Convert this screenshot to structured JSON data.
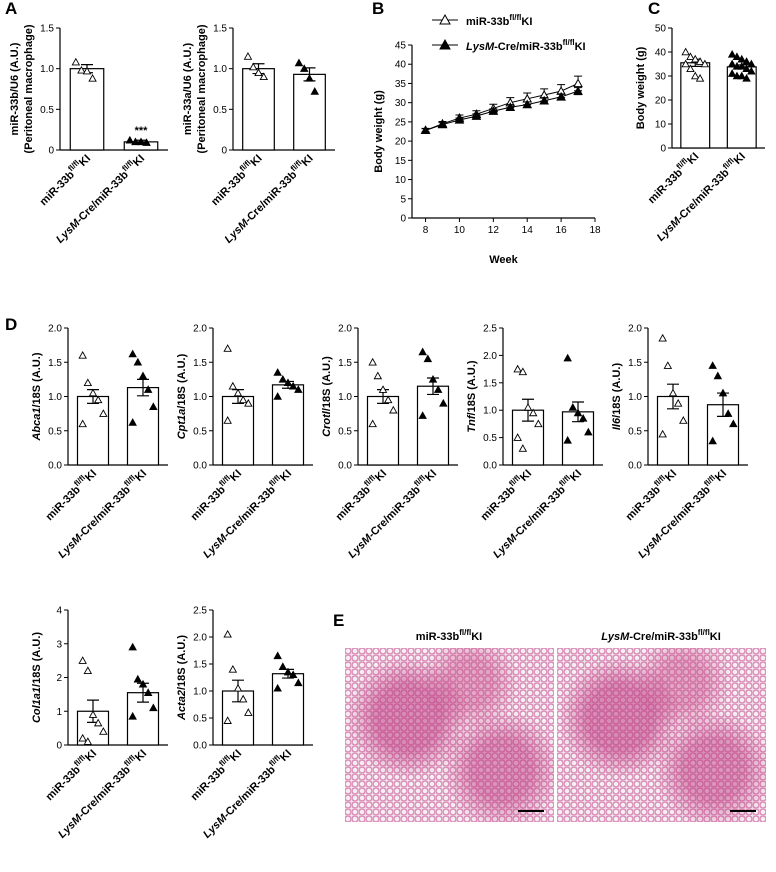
{
  "chart_data": [
    {
      "type": "bar",
      "panel_label": "A",
      "ylabel": [
        [
          "miR-33b/U6 (A.U.)"
        ],
        [
          "(Peritoneal macrophage)"
        ]
      ],
      "categories": [
        [
          "miR-33b",
          "fl/fl",
          "KI"
        ],
        [
          "LysM",
          "-Cre/miR-33b",
          "fl/fl",
          "KI"
        ]
      ],
      "values": [
        1.0,
        0.1
      ],
      "errors": [
        0.05,
        0.02
      ],
      "points": [
        [
          1.08,
          0.98,
          0.97,
          0.88
        ],
        [
          0.12,
          0.1,
          0.1,
          0.09
        ]
      ],
      "markers": [
        "open",
        "filled"
      ],
      "annotation": "***",
      "ylim": [
        0,
        1.5
      ],
      "yticks": [
        0,
        0.5,
        {
          "value": 1,
          "label": "1.0"
        },
        1.5
      ]
    },
    {
      "type": "bar",
      "ylabel": [
        [
          "miR-33a/U6 (A.U.)"
        ],
        [
          "(Peritoneal macrophage)"
        ]
      ],
      "categories": [
        [
          "miR-33b",
          "fl/fl",
          "KI"
        ],
        [
          "LysM",
          "-Cre/miR-33b",
          "fl/fl",
          "KI"
        ]
      ],
      "values": [
        1.0,
        0.93
      ],
      "errors": [
        0.06,
        0.08
      ],
      "points": [
        [
          1.15,
          1.02,
          0.95,
          0.9
        ],
        [
          1.07,
          1.0,
          0.88,
          0.72
        ]
      ],
      "markers": [
        "open",
        "filled"
      ],
      "ylim": [
        0,
        1.5
      ],
      "yticks": [
        0,
        0.5,
        {
          "value": 1,
          "label": "1.0"
        },
        1.5
      ]
    },
    {
      "type": "line",
      "panel_label": "B",
      "ylabel": [
        [
          "Body weight (g)"
        ]
      ],
      "xlabel": "Week",
      "x": [
        8,
        9,
        10,
        11,
        12,
        13,
        14,
        15,
        16,
        17
      ],
      "series": [
        {
          "name": [
            "miR-33b",
            "fl/fl",
            "KI"
          ],
          "marker": "open",
          "color": "#000000",
          "values": [
            22.8,
            24.5,
            26,
            27,
            28.5,
            30,
            31,
            32,
            33,
            35
          ],
          "errors": [
            0.5,
            0.6,
            0.8,
            0.9,
            1.1,
            1.3,
            1.5,
            1.6,
            1.7,
            1.9
          ]
        },
        {
          "name": [
            "LysM",
            "-Cre/miR-33b",
            "fl/fl",
            "KI"
          ],
          "marker": "filled",
          "color": "#000000",
          "values": [
            22.8,
            24.3,
            25.5,
            26.5,
            27.8,
            28.8,
            29.5,
            30.5,
            31.5,
            33
          ],
          "errors": [
            0.4,
            0.5,
            0.5,
            0.6,
            0.6,
            0.7,
            0.7,
            0.8,
            0.8,
            0.9
          ]
        }
      ],
      "xlim": [
        7.2,
        18
      ],
      "xticks": [
        8,
        10,
        12,
        14,
        16,
        18
      ],
      "ylim": [
        0,
        45
      ],
      "yticks": [
        0,
        5,
        10,
        15,
        20,
        25,
        30,
        35,
        40,
        45
      ]
    },
    {
      "type": "bar",
      "panel_label": "C",
      "ylabel": [
        [
          "Body weight (g)"
        ]
      ],
      "categories": [
        [
          "miR-33b",
          "fl/fl",
          "KI"
        ],
        [
          "LysM",
          "-Cre/miR-33b",
          "fl/fl",
          "KI"
        ]
      ],
      "values": [
        35.5,
        33.8
      ],
      "errors": [
        1.5,
        0.8
      ],
      "points": [
        [
          40,
          38,
          37,
          36,
          35,
          35,
          33,
          30,
          29
        ],
        [
          39,
          38,
          37,
          36,
          35,
          35,
          34,
          34,
          33,
          32,
          31,
          30,
          30,
          29
        ]
      ],
      "markers": [
        "open",
        "filled"
      ],
      "ylim": [
        0,
        50
      ],
      "yticks": [
        0,
        10,
        20,
        30,
        40,
        50
      ]
    },
    {
      "type": "bar",
      "panel_label": "D",
      "ylabel": [
        [
          "Abca1",
          "/18S (A.U.)"
        ]
      ],
      "italic_first": true,
      "categories": [
        [
          "miR-33b",
          "fl/fl",
          "KI"
        ],
        [
          "LysM",
          "-Cre/miR-33b",
          "fl/fl",
          "KI"
        ]
      ],
      "values": [
        1.0,
        1.13
      ],
      "errors": [
        0.1,
        0.12
      ],
      "points": [
        [
          1.6,
          1.2,
          1.05,
          0.95,
          0.75,
          0.6
        ],
        [
          1.62,
          1.5,
          1.3,
          1.1,
          0.85,
          0.62
        ]
      ],
      "markers": [
        "open",
        "filled"
      ],
      "ylim": [
        0,
        2
      ],
      "yticks": [
        {
          "value": 0,
          "label": "0.0"
        },
        0.5,
        {
          "value": 1,
          "label": "1.0"
        },
        1.5,
        {
          "value": 2,
          "label": "2.0"
        }
      ]
    },
    {
      "type": "bar",
      "ylabel": [
        [
          "Cpt1a",
          "/18S (A.U.)"
        ]
      ],
      "italic_first": true,
      "categories": [
        [
          "miR-33b",
          "fl/fl",
          "KI"
        ],
        [
          "LysM",
          "-Cre/miR-33b",
          "fl/fl",
          "KI"
        ]
      ],
      "values": [
        1.0,
        1.17
      ],
      "errors": [
        0.1,
        0.05
      ],
      "points": [
        [
          1.7,
          1.15,
          1.05,
          0.95,
          0.9,
          0.65
        ],
        [
          1.35,
          1.25,
          1.2,
          1.15,
          1.1,
          1.0
        ]
      ],
      "markers": [
        "open",
        "filled"
      ],
      "ylim": [
        0,
        2
      ],
      "yticks": [
        {
          "value": 0,
          "label": "0.0"
        },
        0.5,
        {
          "value": 1,
          "label": "1.0"
        },
        1.5,
        {
          "value": 2,
          "label": "2.0"
        }
      ]
    },
    {
      "type": "bar",
      "ylabel": [
        [
          "Crotl",
          "/18S (A.U.)"
        ]
      ],
      "italic_first": true,
      "categories": [
        [
          "miR-33b",
          "fl/fl",
          "KI"
        ],
        [
          "LysM",
          "-Cre/miR-33b",
          "fl/fl",
          "KI"
        ]
      ],
      "values": [
        1.0,
        1.15
      ],
      "errors": [
        0.1,
        0.12
      ],
      "points": [
        [
          1.5,
          1.3,
          1.1,
          0.95,
          0.8,
          0.6
        ],
        [
          1.65,
          1.55,
          1.25,
          1.1,
          0.9,
          0.72
        ]
      ],
      "markers": [
        "open",
        "filled"
      ],
      "ylim": [
        0,
        2
      ],
      "yticks": [
        {
          "value": 0,
          "label": "0.0"
        },
        0.5,
        {
          "value": 1,
          "label": "1.0"
        },
        1.5,
        {
          "value": 2,
          "label": "2.0"
        }
      ]
    },
    {
      "type": "bar",
      "ylabel": [
        [
          "Tnf",
          "/18S (A.U.)"
        ]
      ],
      "italic_first": true,
      "categories": [
        [
          "miR-33b",
          "fl/fl",
          "KI"
        ],
        [
          "LysM",
          "-Cre/miR-33b",
          "fl/fl",
          "KI"
        ]
      ],
      "values": [
        1.0,
        0.97
      ],
      "errors": [
        0.2,
        0.18
      ],
      "points": [
        [
          1.75,
          1.7,
          1.05,
          0.95,
          0.75,
          0.5,
          0.3
        ],
        [
          1.95,
          1.05,
          0.95,
          0.85,
          0.6,
          0.45
        ]
      ],
      "markers": [
        "open",
        "filled"
      ],
      "ylim": [
        0,
        2.5
      ],
      "yticks": [
        {
          "value": 0,
          "label": "0.0"
        },
        0.5,
        {
          "value": 1,
          "label": "1.0"
        },
        1.5,
        {
          "value": 2,
          "label": "2.0"
        },
        2.5
      ]
    },
    {
      "type": "bar",
      "ylabel": [
        [
          "Il6",
          "/18S (A.U.)"
        ]
      ],
      "italic_first": true,
      "categories": [
        [
          "miR-33b",
          "fl/fl",
          "KI"
        ],
        [
          "LysM",
          "-Cre/miR-33b",
          "fl/fl",
          "KI"
        ]
      ],
      "values": [
        1.0,
        0.88
      ],
      "errors": [
        0.18,
        0.17
      ],
      "points": [
        [
          1.85,
          1.45,
          1.05,
          0.9,
          0.65,
          0.45
        ],
        [
          1.45,
          1.3,
          1.05,
          0.75,
          0.6,
          0.35
        ]
      ],
      "markers": [
        "open",
        "filled"
      ],
      "ylim": [
        0,
        2
      ],
      "yticks": [
        {
          "value": 0,
          "label": "0.0"
        },
        0.5,
        {
          "value": 1,
          "label": "1.0"
        },
        1.5,
        {
          "value": 2,
          "label": "2.0"
        }
      ]
    },
    {
      "type": "bar",
      "ylabel": [
        [
          "Col1a1",
          "/18S (A.U.)"
        ]
      ],
      "italic_first": true,
      "categories": [
        [
          "miR-33b",
          "fl/fl",
          "KI"
        ],
        [
          "LysM",
          "-Cre/miR-33b",
          "fl/fl",
          "KI"
        ]
      ],
      "values": [
        1.0,
        1.55
      ],
      "errors": [
        0.33,
        0.28
      ],
      "points": [
        [
          2.5,
          2.2,
          0.9,
          0.65,
          0.4,
          0.2,
          0.1
        ],
        [
          2.9,
          1.95,
          1.8,
          1.55,
          1.1,
          0.85
        ]
      ],
      "markers": [
        "open",
        "filled"
      ],
      "ylim": [
        0,
        4
      ],
      "yticks": [
        0,
        1,
        2,
        3,
        4
      ]
    },
    {
      "type": "bar",
      "ylabel": [
        [
          "Acta2",
          "/18S (A.U.)"
        ]
      ],
      "italic_first": true,
      "categories": [
        [
          "miR-33b",
          "fl/fl",
          "KI"
        ],
        [
          "LysM",
          "-Cre/miR-33b",
          "fl/fl",
          "KI"
        ]
      ],
      "values": [
        1.0,
        1.32
      ],
      "errors": [
        0.2,
        0.08
      ],
      "points": [
        [
          2.05,
          1.4,
          1.05,
          0.85,
          0.6,
          0.45
        ],
        [
          1.65,
          1.45,
          1.35,
          1.3,
          1.15,
          1.05
        ]
      ],
      "markers": [
        "open",
        "filled"
      ],
      "ylim": [
        0,
        2.5
      ],
      "yticks": [
        {
          "value": 0,
          "label": "0.0"
        },
        0.5,
        {
          "value": 1,
          "label": "1.0"
        },
        1.5,
        {
          "value": 2,
          "label": "2.0"
        },
        2.5
      ]
    }
  ],
  "histology": {
    "panel_label": "E",
    "captions": [
      [
        "miR-33b",
        "fl/fl",
        "KI"
      ],
      [
        "LysM",
        "-Cre/miR-33b",
        "fl/fl",
        "KI"
      ]
    ]
  }
}
